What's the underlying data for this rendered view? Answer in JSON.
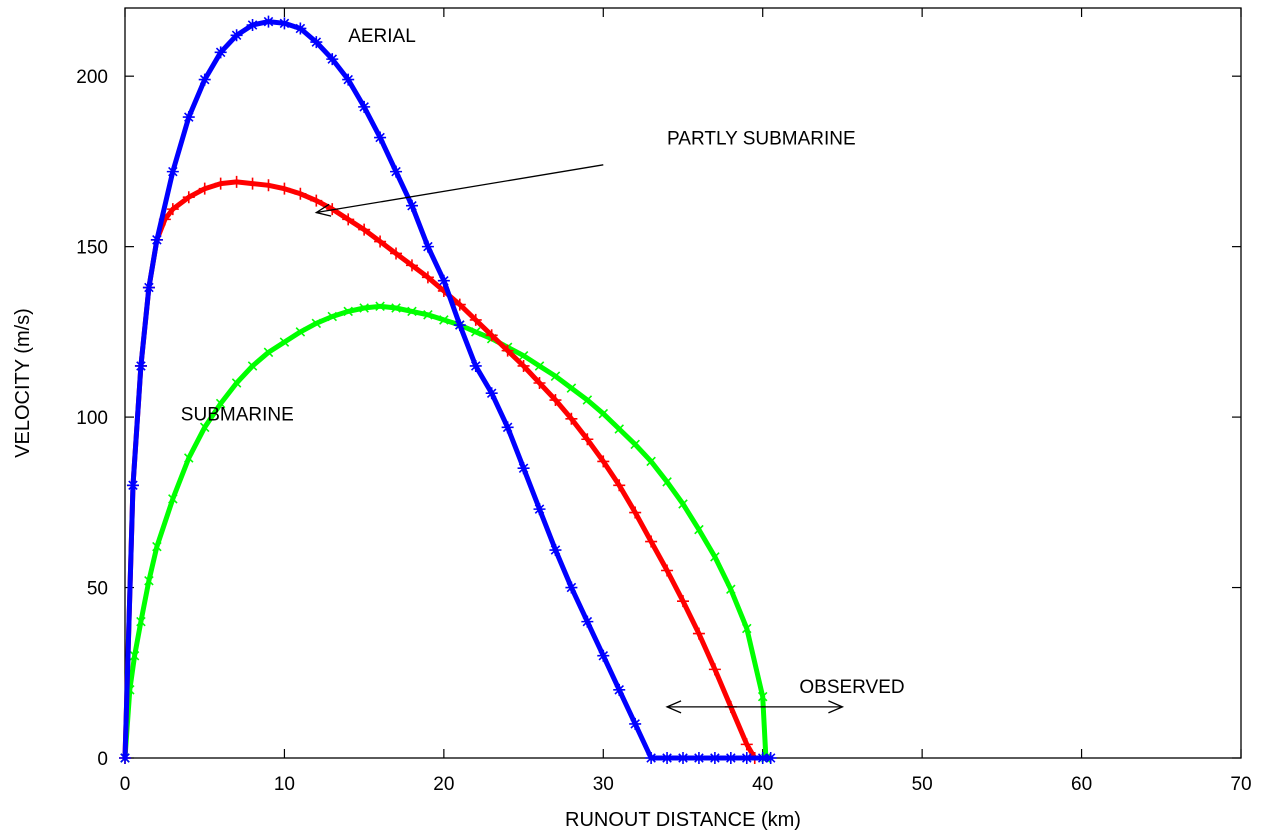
{
  "chart_data": {
    "type": "scatter",
    "xlabel": "RUNOUT DISTANCE (km)",
    "ylabel": "VELOCITY (m/s)",
    "xlim": [
      0,
      70
    ],
    "ylim": [
      0,
      220
    ],
    "xticks": [
      "0",
      "10",
      "20",
      "30",
      "40",
      "50",
      "60",
      "70"
    ],
    "yticks": [
      "0",
      "50",
      "100",
      "150",
      "200"
    ],
    "grid": false,
    "series": [
      {
        "name": "AERIAL",
        "color": "#0000ff",
        "marker": "asterisk",
        "x": [
          0,
          0.5,
          1,
          1.5,
          2,
          3,
          4,
          5,
          6,
          7,
          8,
          9,
          10,
          11,
          12,
          13,
          14,
          15,
          16,
          17,
          18,
          19,
          20,
          21,
          22,
          23,
          24,
          25,
          26,
          27,
          28,
          29,
          30,
          31,
          32,
          33,
          34,
          35,
          36,
          37,
          38,
          39,
          40,
          40.5
        ],
        "y": [
          0,
          80,
          115,
          138,
          152,
          172,
          188,
          199,
          207,
          212,
          215,
          216,
          215.5,
          214,
          210,
          205,
          199,
          191,
          182,
          172,
          162,
          150,
          140,
          127,
          115,
          107,
          97,
          85,
          73,
          61,
          50,
          40,
          30,
          20,
          10,
          0,
          0,
          0,
          0,
          0,
          0,
          0,
          0,
          0
        ]
      },
      {
        "name": "PARTLY SUBMARINE",
        "color": "#ff0000",
        "marker": "plus",
        "x": [
          0,
          0.5,
          1,
          1.5,
          2,
          2.5,
          3,
          4,
          5,
          6,
          7,
          8,
          9,
          10,
          11,
          12,
          13,
          14,
          15,
          16,
          17,
          18,
          19,
          20,
          21,
          22,
          23,
          24,
          25,
          26,
          27,
          28,
          29,
          30,
          31,
          32,
          33,
          34,
          35,
          36,
          37,
          38,
          39,
          39.5
        ],
        "y": [
          0,
          80,
          115,
          138,
          152,
          158,
          161,
          164.5,
          167,
          168.5,
          169,
          168.5,
          168,
          167,
          165.5,
          163.5,
          161,
          158,
          155,
          151.5,
          148,
          144.5,
          141,
          137,
          133,
          128.5,
          124,
          119.5,
          115,
          110,
          105,
          99.5,
          93.5,
          87,
          80,
          72,
          63.5,
          55,
          46,
          36.5,
          26,
          15,
          4,
          0
        ]
      },
      {
        "name": "SUBMARINE",
        "color": "#00ff00",
        "marker": "x",
        "x": [
          0,
          0.3,
          0.6,
          1,
          1.5,
          2,
          3,
          4,
          5,
          6,
          7,
          8,
          9,
          10,
          11,
          12,
          13,
          14,
          15,
          16,
          17,
          18,
          19,
          20,
          21,
          22,
          23,
          24,
          25,
          26,
          27,
          28,
          29,
          30,
          31,
          32,
          33,
          34,
          35,
          36,
          37,
          38,
          39,
          40,
          40.2
        ],
        "y": [
          0,
          20,
          30,
          40,
          52,
          62,
          76,
          88,
          97,
          104,
          110,
          115,
          119,
          122,
          125,
          127.5,
          129.5,
          131,
          132,
          132.5,
          132,
          131,
          130,
          128.5,
          127,
          125,
          123,
          120.5,
          118,
          115,
          112,
          108.5,
          105,
          101,
          96.5,
          92,
          87,
          81,
          74.5,
          67,
          59,
          49.5,
          38,
          18,
          0
        ]
      }
    ],
    "annotations": [
      {
        "text": "AERIAL",
        "x": 14,
        "y": 210
      },
      {
        "text": "PARTLY SUBMARINE",
        "x": 34,
        "y": 180
      },
      {
        "text": "SUBMARINE",
        "x": 3.5,
        "y": 99
      },
      {
        "text": "OBSERVED",
        "x": 42.3,
        "y": 19
      }
    ],
    "arrows": [
      {
        "from": [
          30,
          174
        ],
        "to": [
          12,
          160
        ],
        "heads": "end"
      },
      {
        "from": [
          34,
          15
        ],
        "to": [
          45,
          15
        ],
        "heads": "both"
      }
    ]
  }
}
